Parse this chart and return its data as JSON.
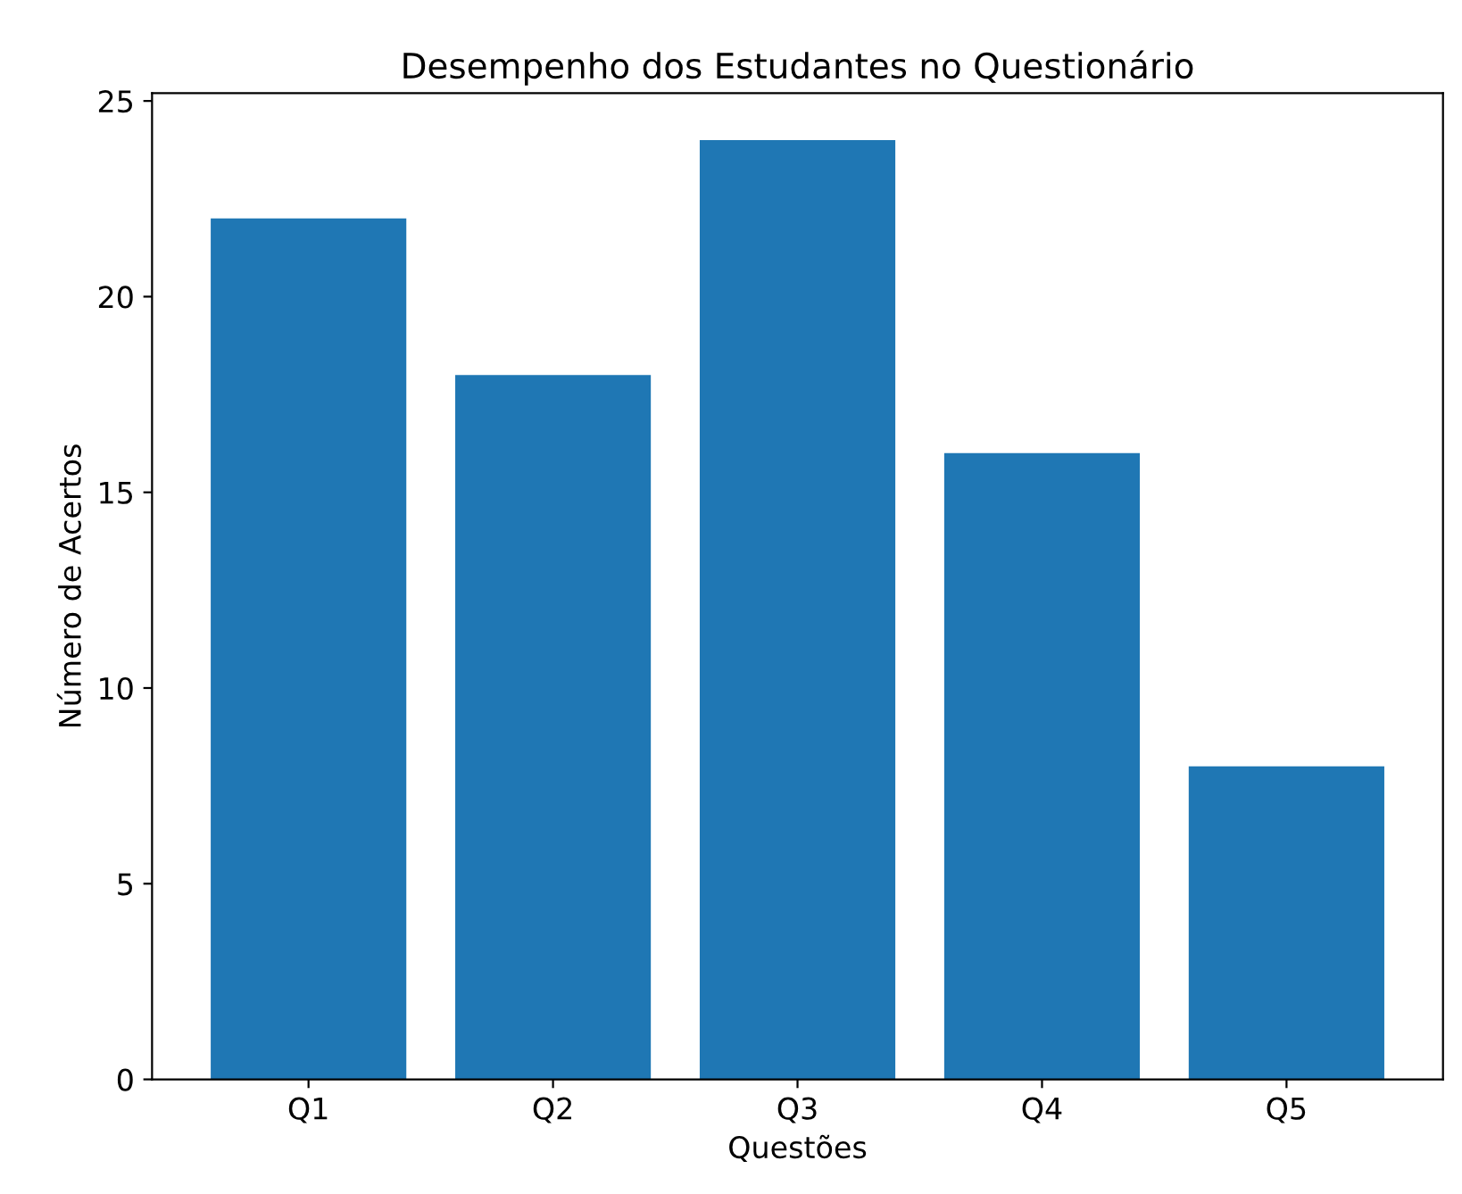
{
  "chart_data": {
    "type": "bar",
    "title": "Desempenho dos Estudantes no Questionário",
    "xlabel": "Questões",
    "ylabel": "Número de Acertos",
    "categories": [
      "Q1",
      "Q2",
      "Q3",
      "Q4",
      "Q5"
    ],
    "values": [
      22,
      18,
      24,
      16,
      8
    ],
    "color": "#1f77b4",
    "ylim": [
      0,
      25.2
    ],
    "yticks": [
      0,
      5,
      10,
      15,
      20,
      25
    ],
    "grid": false
  }
}
